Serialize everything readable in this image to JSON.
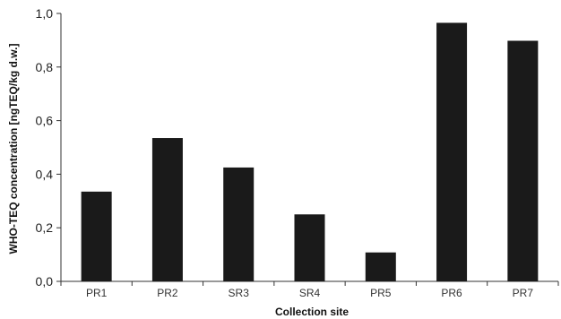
{
  "chart_data": {
    "type": "bar",
    "title": "",
    "xlabel": "Collection site",
    "ylabel": "WHO-TEQ concentration  [ngTEQ/kg d.w.]",
    "categories": [
      "PR1",
      "PR2",
      "SR3",
      "SR4",
      "PR5",
      "PR6",
      "PR7"
    ],
    "values": [
      0.335,
      0.535,
      0.425,
      0.25,
      0.108,
      0.965,
      0.898
    ],
    "ylim": [
      0,
      1.0
    ],
    "yticks": [
      0,
      0.2,
      0.4,
      0.6,
      0.8,
      1.0
    ],
    "ytick_labels": [
      "0,0",
      "0,2",
      "0,4",
      "0,6",
      "0,8",
      "1,0"
    ],
    "grid": false,
    "bar_color": "#1a1a1a",
    "axis_color": "#333333"
  }
}
